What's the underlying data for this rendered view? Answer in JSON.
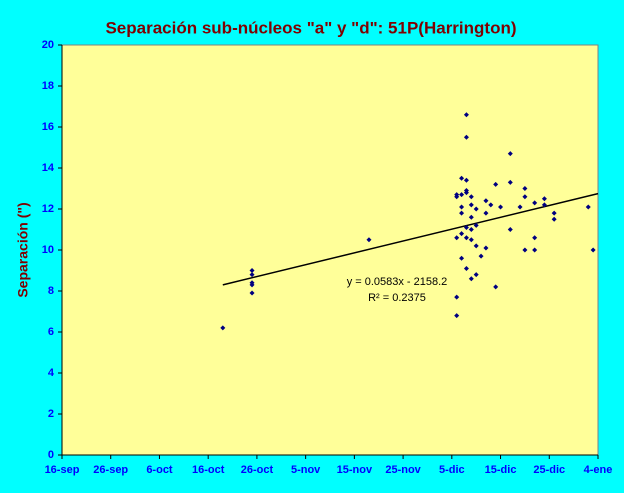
{
  "chart_data": {
    "type": "scatter",
    "title": "Separación sub-núcleos \"a\" y \"d\": 51P(Harrington)",
    "y_label": "Separación (\")",
    "x": [
      "19-oct",
      "25-oct",
      "25-oct",
      "25-oct",
      "25-oct",
      "25-oct",
      "18-nov",
      "6-dic",
      "6-dic",
      "6-dic",
      "6-dic",
      "6-dic",
      "7-dic",
      "7-dic",
      "7-dic",
      "7-dic",
      "7-dic",
      "7-dic",
      "8-dic",
      "8-dic",
      "8-dic",
      "8-dic",
      "8-dic",
      "8-dic",
      "8-dic",
      "8-dic",
      "9-dic",
      "9-dic",
      "9-dic",
      "9-dic",
      "9-dic",
      "9-dic",
      "10-dic",
      "10-dic",
      "10-dic",
      "10-dic",
      "11-dic",
      "12-dic",
      "12-dic",
      "12-dic",
      "13-dic",
      "14-dic",
      "14-dic",
      "15-dic",
      "17-dic",
      "17-dic",
      "17-dic",
      "19-dic",
      "20-dic",
      "20-dic",
      "20-dic",
      "22-dic",
      "22-dic",
      "22-dic",
      "24-dic",
      "24-dic",
      "26-dic",
      "26-dic",
      "2-ene",
      "3-ene"
    ],
    "values": [
      6.2,
      8.8,
      9.0,
      8.4,
      8.3,
      7.9,
      10.5,
      12.7,
      12.6,
      10.6,
      7.7,
      6.8,
      13.5,
      12.7,
      11.8,
      9.6,
      10.8,
      12.1,
      16.6,
      15.5,
      13.4,
      12.9,
      12.8,
      11.1,
      10.6,
      9.1,
      12.6,
      12.2,
      11.6,
      10.5,
      8.6,
      11.0,
      12.0,
      11.2,
      10.2,
      8.8,
      9.7,
      12.4,
      11.8,
      10.1,
      12.2,
      13.2,
      8.2,
      12.1,
      14.7,
      13.3,
      11.0,
      12.1,
      13.0,
      12.6,
      10.0,
      12.3,
      10.6,
      10.0,
      12.5,
      12.2,
      11.8,
      11.5,
      12.1,
      10.0
    ],
    "color": "#000080",
    "trendline": {
      "x": [
        "19-oct",
        "4-ene"
      ],
      "values": [
        8.3,
        12.75
      ],
      "color": "#000000"
    },
    "annotations": [
      "y = 0.0583x - 2158.2",
      "R² = 0.2375"
    ],
    "xlim": [
      "16-sep",
      "4-ene"
    ],
    "xticks": [
      "16-sep",
      "26-sep",
      "6-oct",
      "16-oct",
      "26-oct",
      "5-nov",
      "15-nov",
      "25-nov",
      "5-dic",
      "15-dic",
      "25-dic",
      "4-ene"
    ],
    "ylim": [
      0,
      20
    ],
    "yticks": [
      0,
      2,
      4,
      6,
      8,
      10,
      12,
      14,
      16,
      18,
      20
    ],
    "grid": false
  }
}
